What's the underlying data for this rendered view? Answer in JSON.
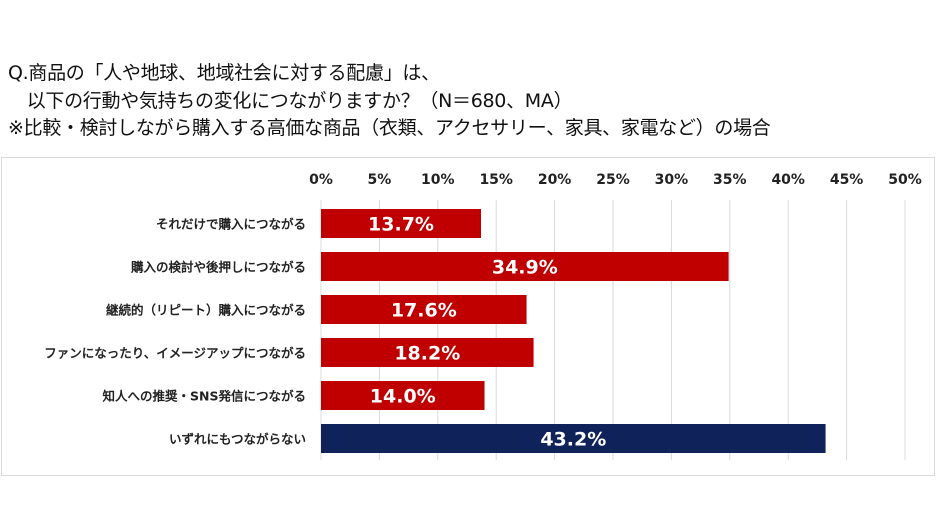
{
  "title_lines": [
    "Q.商品の「人や地球、地域社会に対する配慮」は、",
    "　以下の行動や気持ちの変化につながりますか？（N＝680、MA）",
    "※比較・検討しながら購入する高価な商品（衣類、アクセサリー、家具、家電など）の場合"
  ],
  "chart_data": {
    "type": "bar",
    "orientation": "horizontal",
    "categories": [
      "それだけで購入につながる",
      "購入の検討や後押しにつながる",
      "継続的（リピート）購入につながる",
      "ファンになったり、イメージアップにつながる",
      "知人への推奨・SNS発信につながる",
      "いずれにもつながらない"
    ],
    "values": [
      13.7,
      34.9,
      17.6,
      18.2,
      14.0,
      43.2
    ],
    "data_labels": [
      "13.7%",
      "34.9%",
      "17.6%",
      "18.2%",
      "14.0%",
      "43.2%"
    ],
    "colors": [
      "#C00000",
      "#C00000",
      "#C00000",
      "#C00000",
      "#C00000",
      "#0F2259"
    ],
    "xlim": [
      0,
      50
    ],
    "x_ticks": [
      "0%",
      "5%",
      "10%",
      "15%",
      "20%",
      "25%",
      "30%",
      "35%",
      "40%",
      "45%",
      "50%"
    ],
    "axis_position": "top",
    "grid": true
  }
}
